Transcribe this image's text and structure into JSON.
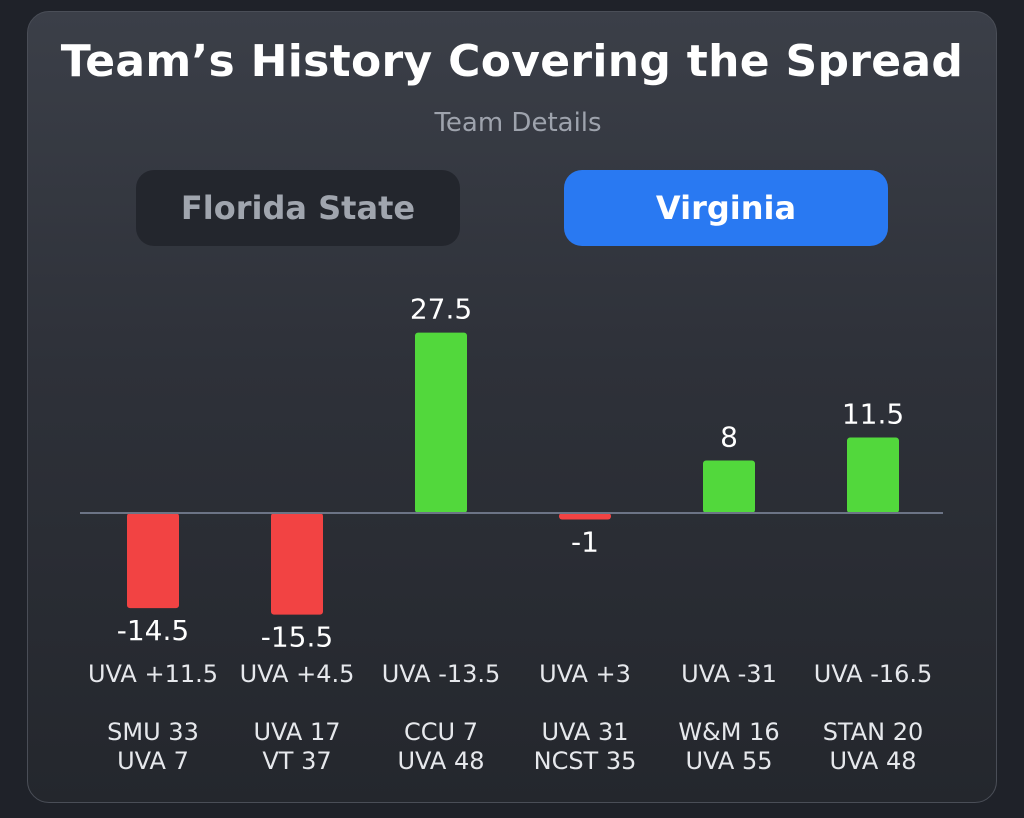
{
  "header": {
    "title": "Team’s History Covering the Spread",
    "subtitle": "Team Details"
  },
  "tabs": [
    {
      "label": "Florida State",
      "active": false
    },
    {
      "label": "Virginia",
      "active": true
    }
  ],
  "colors": {
    "positive": "#52d83c",
    "negative": "#f24343",
    "active_tab": "#2979f2",
    "baseline": "#6c7486"
  },
  "chart_data": {
    "type": "bar",
    "title": "Team’s History Covering the Spread",
    "categories": [
      "UVA +11.5",
      "UVA +4.5",
      "UVA -13.5",
      "UVA +3",
      "UVA -31",
      "UVA -16.5"
    ],
    "values": [
      -14.5,
      -15.5,
      27.5,
      -1,
      8,
      11.5
    ],
    "value_labels": [
      "-14.5",
      "-15.5",
      "27.5",
      "-1",
      "8",
      "11.5"
    ],
    "scores": [
      [
        "SMU 33",
        "UVA 7"
      ],
      [
        "UVA 17",
        "VT 37"
      ],
      [
        "CCU 7",
        "UVA 48"
      ],
      [
        "UVA 31",
        "NCST 35"
      ],
      [
        "W&M 16",
        "UVA 55"
      ],
      [
        "STAN 20",
        "UVA 48"
      ]
    ],
    "ylim": [
      -15.5,
      27.5
    ],
    "grid": false
  }
}
